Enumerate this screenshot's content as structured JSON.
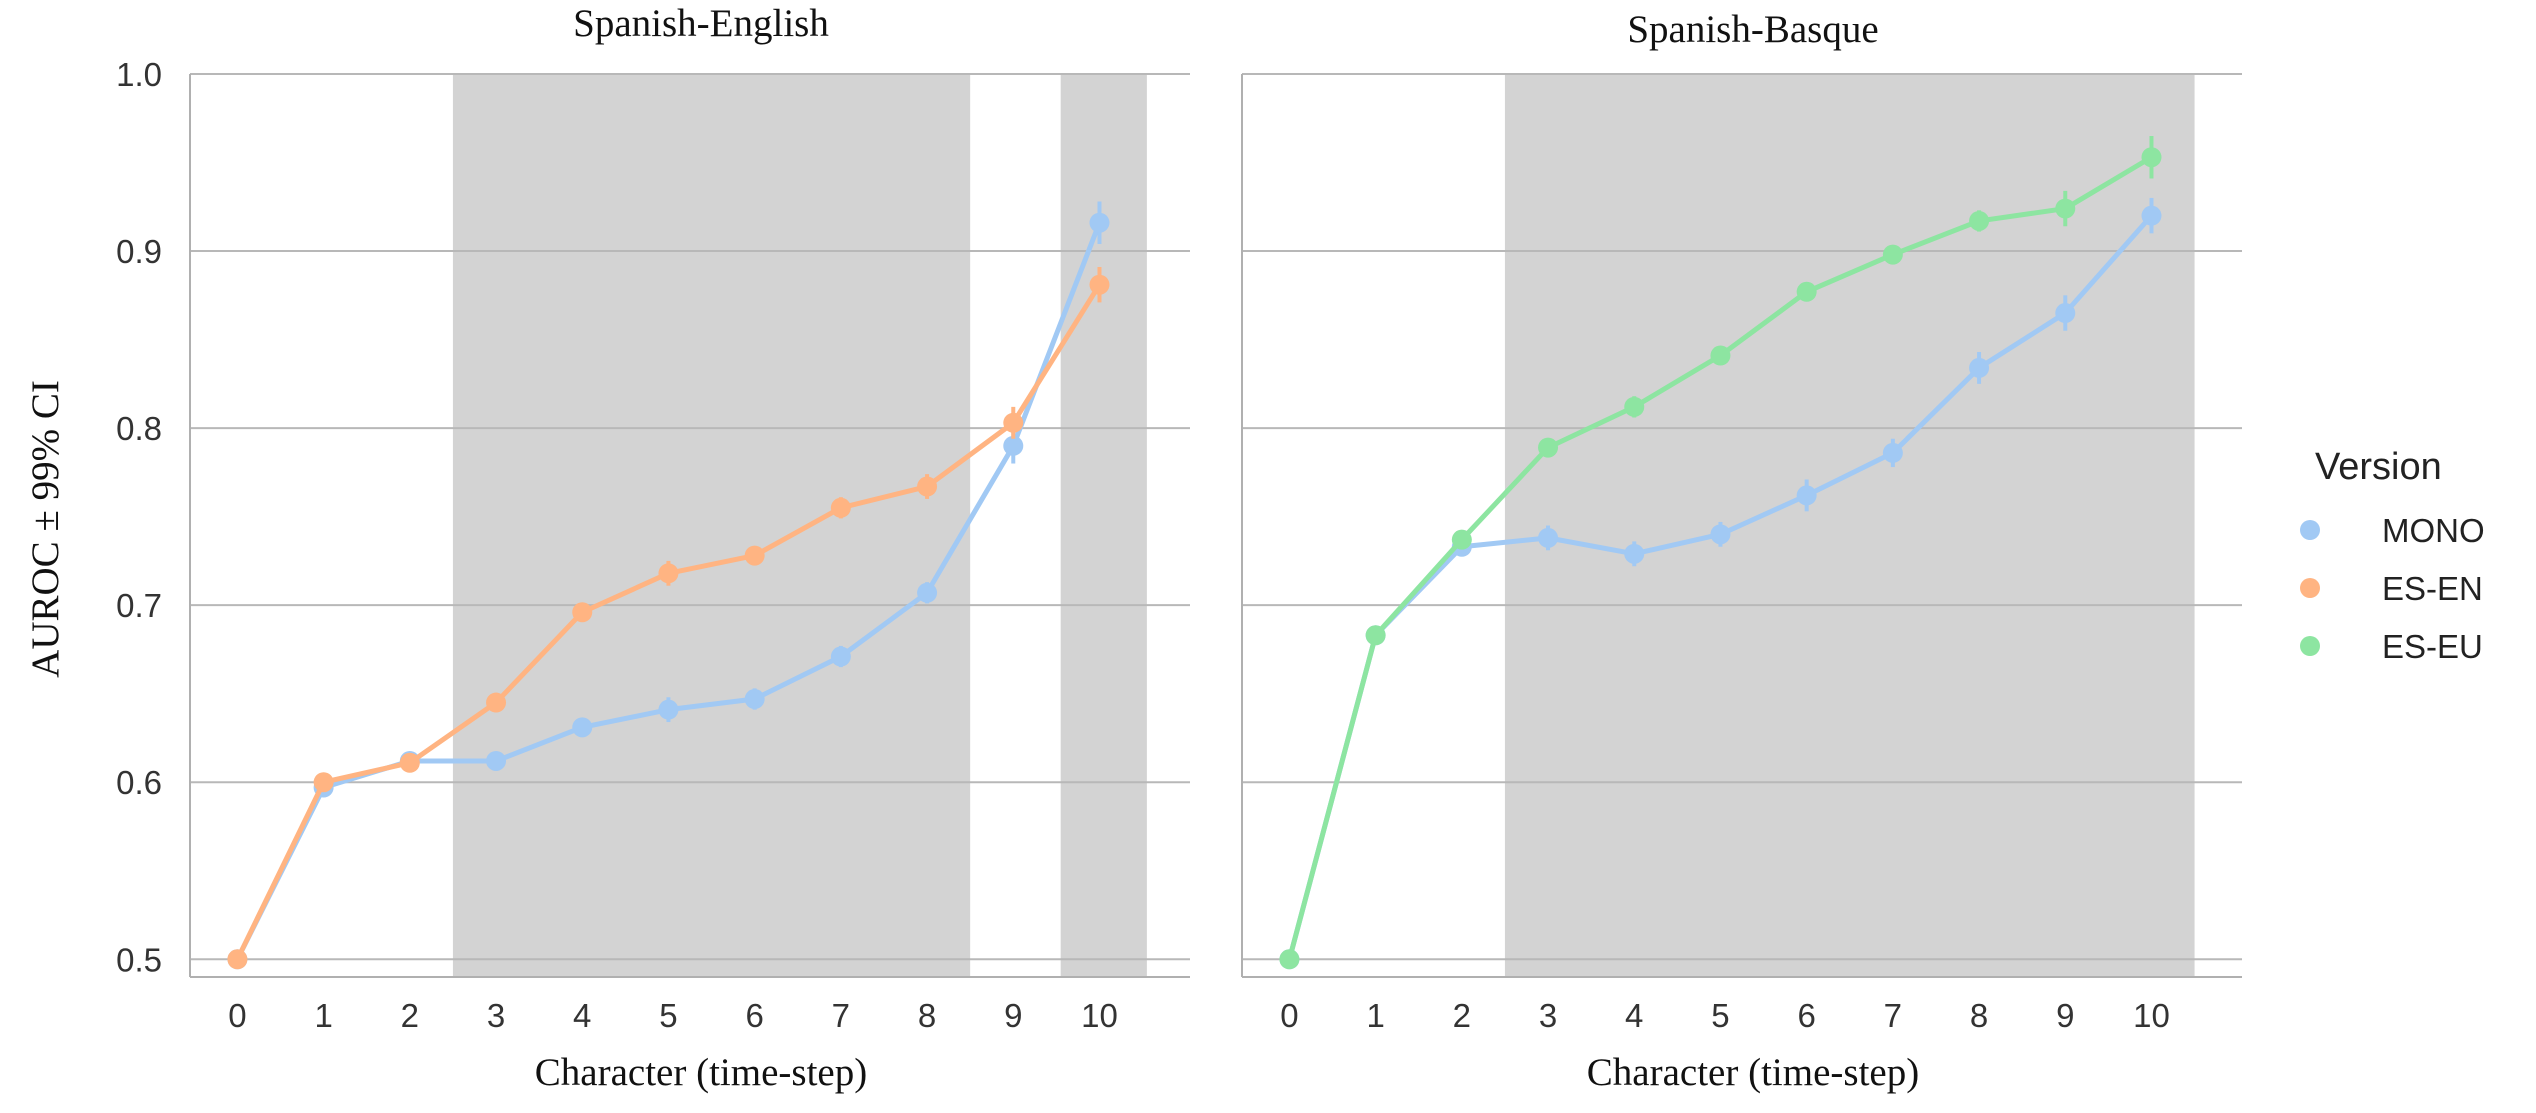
{
  "ylabel": "AUROC  ± 99% CI",
  "legend": {
    "title": "Version",
    "entries": [
      {
        "label": "MONO",
        "color": "#a1c9f4"
      },
      {
        "label": "ES-EN",
        "color": "#ffb482"
      },
      {
        "label": "ES-EU",
        "color": "#8de5a1"
      }
    ]
  },
  "chart_data": [
    {
      "type": "line",
      "title": "Spanish-English",
      "xlabel": "Character (time-step)",
      "ylabel": "AUROC  ± 99% CI",
      "x": [
        0,
        1,
        2,
        3,
        4,
        5,
        6,
        7,
        8,
        9,
        10
      ],
      "xlim": [
        -0.55,
        11.05
      ],
      "ylim": [
        0.49,
        1.0
      ],
      "yticks": [
        0.5,
        0.6,
        0.7,
        0.8,
        0.9,
        1.0
      ],
      "ytick_labels": [
        "0.5",
        "0.6",
        "0.7",
        "0.8",
        "0.9",
        "1.0"
      ],
      "grid": true,
      "shaded_x_ranges": [
        [
          2.5,
          8.5
        ],
        [
          9.55,
          10.55
        ]
      ],
      "series": [
        {
          "name": "MONO",
          "color": "#a1c9f4",
          "values": [
            0.5,
            0.597,
            0.612,
            0.612,
            0.631,
            0.641,
            0.647,
            0.671,
            0.707,
            0.79,
            0.916
          ],
          "ci": [
            0.002,
            0.004,
            0.004,
            0.005,
            0.005,
            0.007,
            0.006,
            0.006,
            0.006,
            0.01,
            0.012
          ]
        },
        {
          "name": "ES-EN",
          "color": "#ffb482",
          "values": [
            0.5,
            0.6,
            0.611,
            0.645,
            0.696,
            0.718,
            0.728,
            0.755,
            0.767,
            0.803,
            0.881
          ],
          "ci": [
            0.002,
            0.004,
            0.004,
            0.005,
            0.005,
            0.007,
            0.005,
            0.006,
            0.007,
            0.009,
            0.01
          ]
        }
      ]
    },
    {
      "type": "line",
      "title": "Spanish-Basque",
      "xlabel": "Character (time-step)",
      "x": [
        0,
        1,
        2,
        3,
        4,
        5,
        6,
        7,
        8,
        9,
        10
      ],
      "xlim": [
        -0.55,
        11.05
      ],
      "ylim": [
        0.49,
        1.0
      ],
      "yticks": [
        0.5,
        0.6,
        0.7,
        0.8,
        0.9,
        1.0
      ],
      "grid": true,
      "shaded_x_ranges": [
        [
          2.5,
          10.5
        ]
      ],
      "series": [
        {
          "name": "MONO",
          "color": "#a1c9f4",
          "values": [
            0.5,
            0.683,
            0.733,
            0.738,
            0.729,
            0.74,
            0.762,
            0.786,
            0.834,
            0.865,
            0.92
          ],
          "ci": [
            0.002,
            0.004,
            0.004,
            0.007,
            0.007,
            0.007,
            0.009,
            0.008,
            0.009,
            0.01,
            0.01
          ]
        },
        {
          "name": "ES-EU",
          "color": "#8de5a1",
          "values": [
            0.5,
            0.683,
            0.737,
            0.789,
            0.812,
            0.841,
            0.877,
            0.898,
            0.917,
            0.924,
            0.953
          ],
          "ci": [
            0.002,
            0.004,
            0.004,
            0.005,
            0.006,
            0.005,
            0.005,
            0.005,
            0.006,
            0.01,
            0.012
          ]
        }
      ]
    }
  ]
}
